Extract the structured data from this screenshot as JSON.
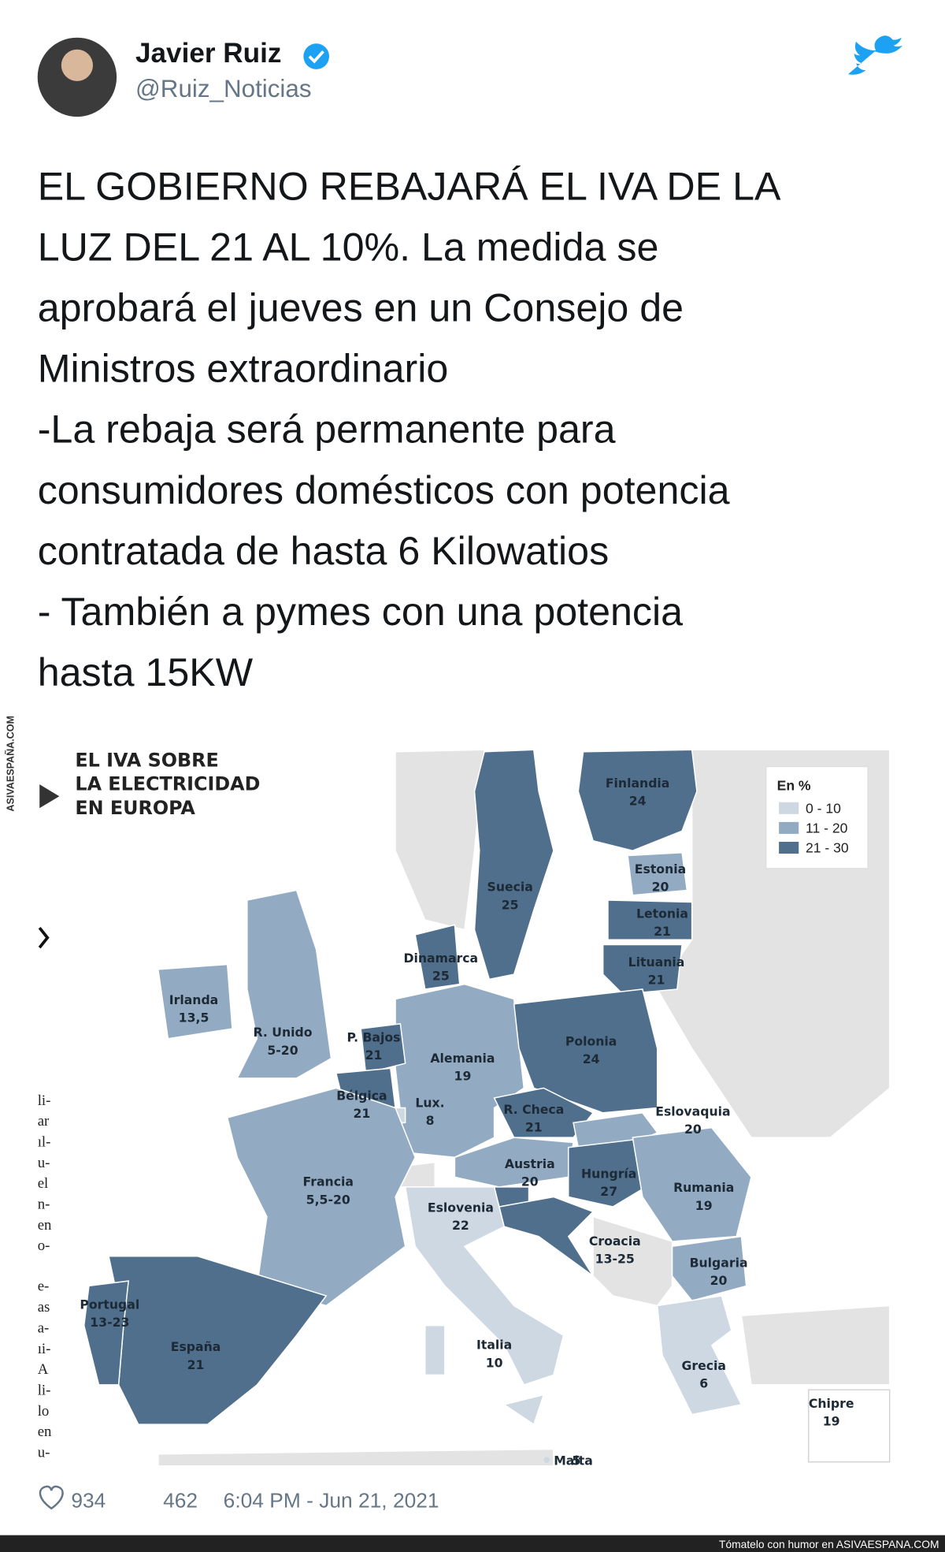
{
  "tweet": {
    "author": "Javier Ruiz",
    "handle": "@Ruiz_Noticias",
    "text_lines": [
      "EL GOBIERNO REBAJARÁ EL IVA DE LA",
      "LUZ DEL 21 AL 10%. La medida se",
      "aprobará el jueves en un Consejo de",
      "Ministros extraordinario",
      "-La rebaja será permanente para",
      "consumidores domésticos con potencia",
      "contratada de hasta 6 Kilowatios",
      "- También a pymes con una potencia",
      "hasta 15KW"
    ]
  },
  "map": {
    "title_lines": [
      "EL IVA SOBRE",
      "LA ELECTRICIDAD",
      "EN EUROPA"
    ],
    "legend": {
      "title": "En %",
      "items": [
        "0 - 10",
        "11 - 20",
        "21 - 30"
      ]
    },
    "countries": [
      {
        "name": "Finlandia",
        "value": "24"
      },
      {
        "name": "Suecia",
        "value": "25"
      },
      {
        "name": "Estonia",
        "value": "20"
      },
      {
        "name": "Letonia",
        "value": "21"
      },
      {
        "name": "Lituania",
        "value": "21"
      },
      {
        "name": "Dinamarca",
        "value": "25"
      },
      {
        "name": "Irlanda",
        "value": "13,5"
      },
      {
        "name": "R. Unido",
        "value": "5-20"
      },
      {
        "name": "P. Bajos",
        "value": "21"
      },
      {
        "name": "Bélgica",
        "value": "21"
      },
      {
        "name": "Lux.",
        "value": "8"
      },
      {
        "name": "Alemania",
        "value": "19"
      },
      {
        "name": "Polonia",
        "value": "24"
      },
      {
        "name": "R. Checa",
        "value": "21"
      },
      {
        "name": "Eslovaquia",
        "value": "20"
      },
      {
        "name": "Austria",
        "value": "20"
      },
      {
        "name": "Hungría",
        "value": "27"
      },
      {
        "name": "Rumania",
        "value": "19"
      },
      {
        "name": "Eslovenia",
        "value": "22"
      },
      {
        "name": "Croacia",
        "value": "13-25"
      },
      {
        "name": "Francia",
        "value": "5,5-20"
      },
      {
        "name": "Bulgaria",
        "value": "20"
      },
      {
        "name": "Portugal",
        "value": "13-23"
      },
      {
        "name": "España",
        "value": "21"
      },
      {
        "name": "Italia",
        "value": "10"
      },
      {
        "name": "Grecia",
        "value": "6"
      },
      {
        "name": "Chipre",
        "value": "19"
      },
      {
        "name": "Malta",
        "value": "5"
      }
    ]
  },
  "side_fragments": [
    "li-",
    "ar",
    "ıl-",
    "u-",
    "el",
    "n-",
    "en",
    "o-",
    "e-",
    "as",
    "a-",
    "ıi-",
    "A",
    "li-",
    "lo",
    "en",
    "u-"
  ],
  "footer": {
    "likes": 934,
    "retweets": 462,
    "timestamp": "6:04 PM - Jun 21, 2021"
  },
  "watermark_side": "ASIVAESPAÑA.COM",
  "watermark_bottom": "Tómatelo con humor en ASIVAESPANA.COM"
}
